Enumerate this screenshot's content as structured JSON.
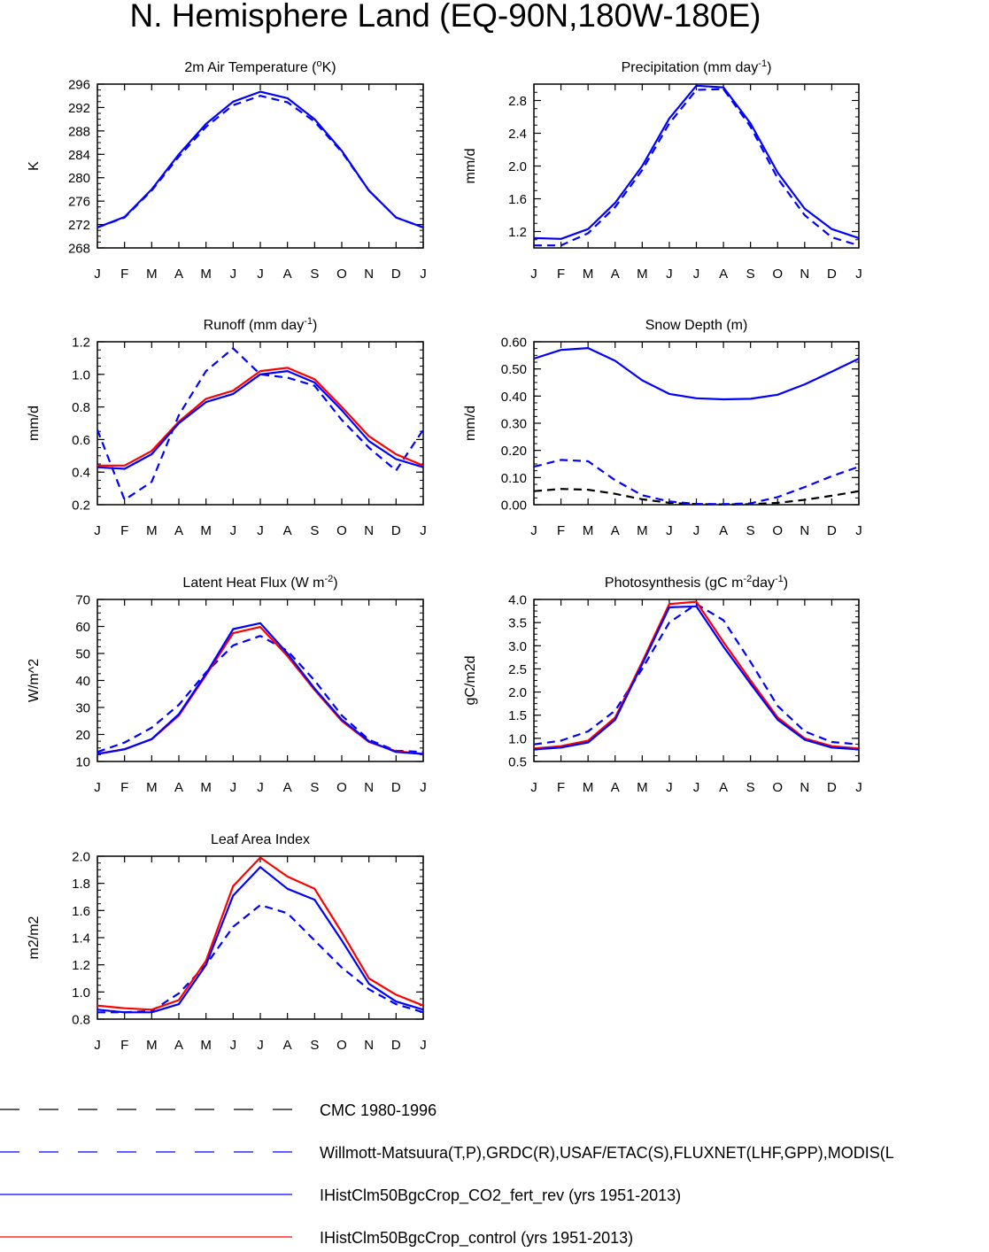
{
  "figure": {
    "title": "N. Hemisphere Land (EQ-90N,180W-180E)"
  },
  "month_labels": [
    "J",
    "F",
    "M",
    "A",
    "M",
    "J",
    "J",
    "A",
    "S",
    "O",
    "N",
    "D",
    "J"
  ],
  "colors": {
    "black": "#000000",
    "blue": "#0000ff",
    "red": "#ff0000"
  },
  "legend": [
    {
      "label": "CMC 1980-1996",
      "color": "#000000",
      "dash": "dashed"
    },
    {
      "label": "Willmott-Matsuura(T,P),GRDC(R),USAF/ETAC(S),FLUXNET(LHF,GPP),MODIS(L",
      "color": "#0000ff",
      "dash": "dashed"
    },
    {
      "label": "IHistClm50BgcCrop_CO2_fert_rev (yrs 1951-2013)",
      "color": "#0000ff",
      "dash": "solid"
    },
    {
      "label": "IHistClm50BgcCrop_control (yrs 1951-2013)",
      "color": "#ff0000",
      "dash": "solid"
    }
  ],
  "chart_data": [
    {
      "type": "line",
      "title": "2m Air Temperature (",
      "title_sup": "o",
      "title_end": "K)",
      "ylabel": "K",
      "ylim": [
        268,
        296
      ],
      "yticks": [
        268,
        272,
        276,
        280,
        284,
        288,
        292,
        296
      ],
      "ytick_labels": [
        "268",
        "272",
        "276",
        "280",
        "284",
        "288",
        "292",
        "296"
      ],
      "series": [
        {
          "color": "#0000ff",
          "dash": "dashed",
          "values": [
            271.5,
            273.2,
            277.8,
            283.6,
            288.7,
            292.4,
            294.0,
            292.9,
            289.6,
            284.4,
            277.8,
            273.2,
            271.5
          ]
        },
        {
          "color": "#0000ff",
          "dash": "solid",
          "values": [
            271.5,
            273.3,
            278.0,
            284.0,
            289.2,
            293.0,
            294.7,
            293.6,
            290.0,
            284.6,
            277.8,
            273.2,
            271.5
          ]
        }
      ]
    },
    {
      "type": "line",
      "title": "Precipitation (mm day",
      "title_sup": "-1",
      "title_end": ")",
      "ylabel": "mm/d",
      "ylim": [
        1.0,
        3.0
      ],
      "yticks": [
        1.2,
        1.6,
        2.0,
        2.4,
        2.8
      ],
      "ytick_labels": [
        "1.2",
        "1.6",
        "2.0",
        "2.4",
        "2.8"
      ],
      "series": [
        {
          "color": "#0000ff",
          "dash": "dashed",
          "values": [
            1.03,
            1.03,
            1.18,
            1.5,
            1.95,
            2.52,
            2.93,
            2.94,
            2.48,
            1.85,
            1.4,
            1.13,
            1.03
          ]
        },
        {
          "color": "#0000ff",
          "dash": "solid",
          "values": [
            1.12,
            1.11,
            1.23,
            1.55,
            2.0,
            2.58,
            2.98,
            2.96,
            2.52,
            1.92,
            1.48,
            1.23,
            1.12
          ]
        }
      ]
    },
    {
      "type": "line",
      "title": "Runoff (mm day",
      "title_sup": "-1",
      "title_end": ")",
      "ylabel": "mm/d",
      "ylim": [
        0.2,
        1.2
      ],
      "yticks": [
        0.2,
        0.4,
        0.6,
        0.8,
        1.0,
        1.2
      ],
      "ytick_labels": [
        "0.2",
        "0.4",
        "0.6",
        "0.8",
        "1.0",
        "1.2"
      ],
      "series": [
        {
          "color": "#0000ff",
          "dash": "dashed",
          "values": [
            0.66,
            0.23,
            0.34,
            0.75,
            1.02,
            1.16,
            1.0,
            0.98,
            0.93,
            0.72,
            0.55,
            0.41,
            0.66
          ]
        },
        {
          "color": "#ff0000",
          "dash": "solid",
          "values": [
            0.44,
            0.44,
            0.53,
            0.71,
            0.85,
            0.9,
            1.02,
            1.04,
            0.97,
            0.8,
            0.62,
            0.51,
            0.44
          ]
        },
        {
          "color": "#0000ff",
          "dash": "solid",
          "values": [
            0.43,
            0.42,
            0.51,
            0.7,
            0.83,
            0.88,
            1.0,
            1.02,
            0.95,
            0.78,
            0.59,
            0.48,
            0.43
          ]
        }
      ]
    },
    {
      "type": "line",
      "title": "Snow Depth (m)",
      "title_sup": "",
      "title_end": "",
      "ylabel": "mm/d",
      "ylim": [
        0.0,
        0.6
      ],
      "yticks": [
        0.0,
        0.1,
        0.2,
        0.3,
        0.4,
        0.5,
        0.6
      ],
      "ytick_labels": [
        "0.00",
        "0.10",
        "0.20",
        "0.30",
        "0.40",
        "0.50",
        "0.60"
      ],
      "series": [
        {
          "color": "#000000",
          "dash": "dashed",
          "values": [
            0.05,
            0.058,
            0.055,
            0.04,
            0.02,
            0.007,
            0.002,
            0.001,
            0.002,
            0.007,
            0.018,
            0.033,
            0.05
          ]
        },
        {
          "color": "#0000ff",
          "dash": "dashed",
          "values": [
            0.14,
            0.165,
            0.16,
            0.09,
            0.035,
            0.012,
            0.003,
            0.002,
            0.005,
            0.028,
            0.065,
            0.105,
            0.14
          ]
        },
        {
          "color": "#0000ff",
          "dash": "solid",
          "values": [
            0.538,
            0.57,
            0.577,
            0.53,
            0.458,
            0.408,
            0.392,
            0.388,
            0.39,
            0.405,
            0.443,
            0.49,
            0.538
          ]
        }
      ]
    },
    {
      "type": "line",
      "title": "Latent Heat Flux (W m",
      "title_sup": "-2",
      "title_end": ")",
      "ylabel": "W/m^2",
      "ylim": [
        10,
        70
      ],
      "yticks": [
        10,
        20,
        30,
        40,
        50,
        60,
        70
      ],
      "ytick_labels": [
        "10",
        "20",
        "30",
        "40",
        "50",
        "60",
        "70"
      ],
      "series": [
        {
          "color": "#0000ff",
          "dash": "dashed",
          "values": [
            13.5,
            17.0,
            22.5,
            31.0,
            43.0,
            53.0,
            56.5,
            51.0,
            40.0,
            27.0,
            18.0,
            14.0,
            13.5
          ]
        },
        {
          "color": "#ff0000",
          "dash": "solid",
          "values": [
            12.8,
            14.6,
            18.2,
            27.0,
            42.0,
            57.5,
            59.8,
            49.0,
            36.5,
            25.0,
            17.2,
            13.8,
            12.8
          ]
        },
        {
          "color": "#0000ff",
          "dash": "solid",
          "values": [
            12.8,
            14.5,
            18.3,
            27.5,
            42.5,
            59.0,
            61.2,
            50.0,
            37.0,
            25.5,
            17.5,
            13.5,
            12.8
          ]
        }
      ]
    },
    {
      "type": "line",
      "title": "Photosynthesis (gC m",
      "title_sup": "-2",
      "title_end": "day",
      "title_sup2": "-1",
      "title_end2": ")",
      "ylabel": "gC/m2d",
      "ylim": [
        0.5,
        4.0
      ],
      "yticks": [
        0.5,
        1.0,
        1.5,
        2.0,
        2.5,
        3.0,
        3.5,
        4.0
      ],
      "ytick_labels": [
        "0.5",
        "1.0",
        "1.5",
        "2.0",
        "2.5",
        "3.0",
        "3.5",
        "4.0"
      ],
      "series": [
        {
          "color": "#0000ff",
          "dash": "dashed",
          "values": [
            0.87,
            0.95,
            1.15,
            1.6,
            2.5,
            3.5,
            3.9,
            3.55,
            2.65,
            1.7,
            1.15,
            0.92,
            0.87
          ]
        },
        {
          "color": "#ff0000",
          "dash": "solid",
          "values": [
            0.78,
            0.83,
            0.95,
            1.45,
            2.65,
            3.9,
            3.95,
            3.08,
            2.25,
            1.45,
            1.0,
            0.83,
            0.78
          ]
        },
        {
          "color": "#0000ff",
          "dash": "solid",
          "values": [
            0.76,
            0.8,
            0.91,
            1.4,
            2.6,
            3.83,
            3.85,
            2.98,
            2.18,
            1.4,
            0.97,
            0.8,
            0.76
          ]
        }
      ]
    },
    {
      "type": "line",
      "title": "Leaf Area Index",
      "title_sup": "",
      "title_end": "",
      "ylabel": "m2/m2",
      "ylim": [
        0.8,
        2.0
      ],
      "yticks": [
        0.8,
        1.0,
        1.2,
        1.4,
        1.6,
        1.8,
        2.0
      ],
      "ytick_labels": [
        "0.8",
        "1.0",
        "1.2",
        "1.4",
        "1.6",
        "1.8",
        "2.0"
      ],
      "series": [
        {
          "color": "#0000ff",
          "dash": "dashed",
          "values": [
            0.85,
            0.85,
            0.86,
            0.99,
            1.2,
            1.48,
            1.64,
            1.58,
            1.38,
            1.18,
            1.02,
            0.91,
            0.85
          ]
        },
        {
          "color": "#ff0000",
          "dash": "solid",
          "values": [
            0.9,
            0.88,
            0.87,
            0.94,
            1.23,
            1.78,
            1.99,
            1.85,
            1.76,
            1.44,
            1.1,
            0.98,
            0.9
          ]
        },
        {
          "color": "#0000ff",
          "dash": "solid",
          "values": [
            0.87,
            0.85,
            0.85,
            0.91,
            1.2,
            1.71,
            1.92,
            1.76,
            1.68,
            1.38,
            1.06,
            0.93,
            0.87
          ]
        }
      ]
    }
  ]
}
